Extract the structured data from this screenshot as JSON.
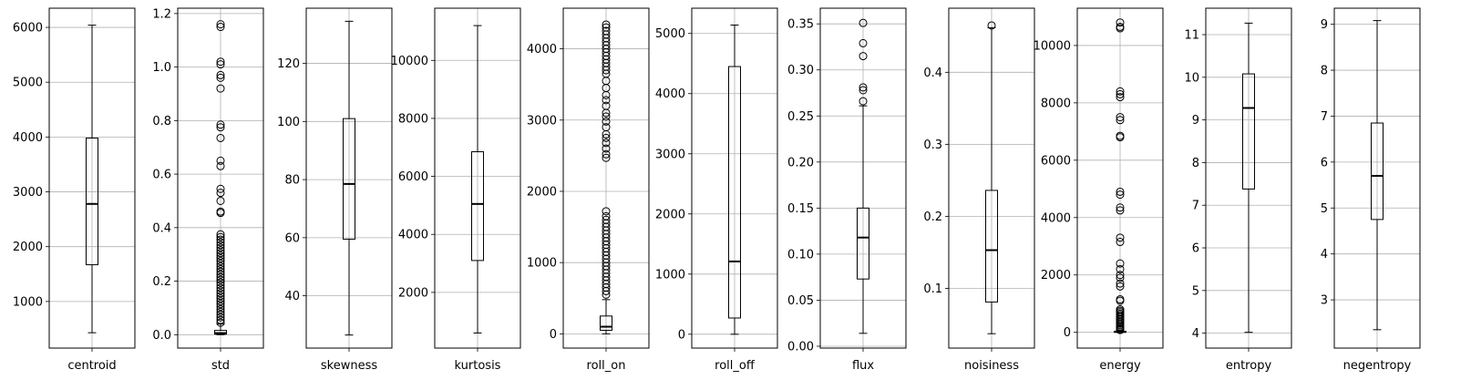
{
  "chart_data": [
    {
      "type": "box",
      "category": "centroid",
      "ylim": [
        150,
        6350
      ],
      "yticks": [
        1000,
        2000,
        3000,
        4000,
        5000,
        6000
      ],
      "ytick_labels": [
        "1000",
        "2000",
        "3000",
        "4000",
        "5000",
        "6000"
      ],
      "grid": true,
      "box": {
        "whislo": 430,
        "q1": 1670,
        "median": 2780,
        "q3": 3980,
        "whishi": 6040
      },
      "fliers": []
    },
    {
      "type": "box",
      "category": "std",
      "ylim": [
        -0.05,
        1.22
      ],
      "yticks": [
        0.0,
        0.2,
        0.4,
        0.6,
        0.8,
        1.0,
        1.2
      ],
      "ytick_labels": [
        "0.0",
        "0.2",
        "0.4",
        "0.6",
        "0.8",
        "1.0",
        "1.2"
      ],
      "grid": true,
      "box": {
        "whislo": 0.0,
        "q1": 0.002,
        "median": 0.006,
        "q3": 0.016,
        "whishi": 0.04
      },
      "fliers": [
        0.045,
        0.055,
        0.065,
        0.075,
        0.085,
        0.095,
        0.105,
        0.115,
        0.125,
        0.135,
        0.145,
        0.155,
        0.165,
        0.175,
        0.185,
        0.195,
        0.205,
        0.215,
        0.225,
        0.235,
        0.245,
        0.255,
        0.265,
        0.275,
        0.285,
        0.295,
        0.305,
        0.315,
        0.325,
        0.335,
        0.345,
        0.355,
        0.365,
        0.375,
        0.455,
        0.46,
        0.5,
        0.53,
        0.545,
        0.63,
        0.65,
        0.735,
        0.775,
        0.785,
        0.92,
        0.96,
        0.97,
        1.01,
        1.02,
        1.15,
        1.16
      ]
    },
    {
      "type": "box",
      "category": "skewness",
      "ylim": [
        22,
        139
      ],
      "yticks": [
        40,
        60,
        80,
        100,
        120
      ],
      "ytick_labels": [
        "40",
        "60",
        "80",
        "100",
        "120"
      ],
      "grid": true,
      "box": {
        "whislo": 26.5,
        "q1": 59.5,
        "median": 78.5,
        "q3": 101,
        "whishi": 134.5
      },
      "fliers": []
    },
    {
      "type": "box",
      "category": "kurtosis",
      "ylim": [
        80,
        11800
      ],
      "yticks": [
        2000,
        4000,
        6000,
        8000,
        10000
      ],
      "ytick_labels": [
        "2000",
        "4000",
        "6000",
        "8000",
        "10000"
      ],
      "grid": true,
      "box": {
        "whislo": 600,
        "q1": 3100,
        "median": 5050,
        "q3": 6850,
        "whishi": 11200
      },
      "fliers": []
    },
    {
      "type": "box",
      "category": "roll_on",
      "ylim": [
        -200,
        4570
      ],
      "yticks": [
        0,
        1000,
        2000,
        3000,
        4000
      ],
      "ytick_labels": [
        "0",
        "1000",
        "2000",
        "3000",
        "4000"
      ],
      "grid": true,
      "box": {
        "whislo": 0,
        "q1": 50,
        "median": 100,
        "q3": 250,
        "whishi": 480
      },
      "fliers": [
        550,
        600,
        650,
        700,
        750,
        800,
        850,
        900,
        950,
        1000,
        1050,
        1100,
        1150,
        1200,
        1250,
        1300,
        1350,
        1400,
        1450,
        1500,
        1550,
        1600,
        1650,
        1720,
        2470,
        2520,
        2600,
        2680,
        2750,
        2800,
        2900,
        2980,
        3050,
        3100,
        3200,
        3280,
        3350,
        3450,
        3550,
        3650,
        3700,
        3750,
        3800,
        3850,
        3900,
        3950,
        4000,
        4050,
        4100,
        4150,
        4200,
        4250,
        4300,
        4340
      ]
    },
    {
      "type": "box",
      "category": "roll_off",
      "ylim": [
        -230,
        5420
      ],
      "yticks": [
        0,
        1000,
        2000,
        3000,
        4000,
        5000
      ],
      "ytick_labels": [
        "0",
        "1000",
        "2000",
        "3000",
        "4000",
        "5000"
      ],
      "grid": true,
      "box": {
        "whislo": 0,
        "q1": 270,
        "median": 1210,
        "q3": 4450,
        "whishi": 5140
      },
      "fliers": []
    },
    {
      "type": "box",
      "category": "flux",
      "ylim": [
        -0.002,
        0.367
      ],
      "yticks": [
        0.0,
        0.05,
        0.1,
        0.15,
        0.2,
        0.25,
        0.3,
        0.35
      ],
      "ytick_labels": [
        "0.00",
        "0.05",
        "0.10",
        "0.15",
        "0.20",
        "0.25",
        "0.30",
        "0.35"
      ],
      "grid": true,
      "box": {
        "whislo": 0.014,
        "q1": 0.073,
        "median": 0.118,
        "q3": 0.15,
        "whishi": 0.261
      },
      "fliers": [
        0.266,
        0.278,
        0.281,
        0.315,
        0.329,
        0.351
      ]
    },
    {
      "type": "box",
      "category": "noisiness",
      "ylim": [
        0.017,
        0.489
      ],
      "yticks": [
        0.1,
        0.2,
        0.3,
        0.4
      ],
      "ytick_labels": [
        "0.1",
        "0.2",
        "0.3",
        "0.4"
      ],
      "grid": true,
      "box": {
        "whislo": 0.037,
        "q1": 0.081,
        "median": 0.153,
        "q3": 0.236,
        "whishi": 0.462
      },
      "fliers": [
        0.465
      ]
    },
    {
      "type": "box",
      "category": "energy",
      "ylim": [
        -550,
        11300
      ],
      "yticks": [
        0,
        2000,
        4000,
        6000,
        8000,
        10000
      ],
      "ytick_labels": [
        "0",
        "2000",
        "4000",
        "6000",
        "8000",
        "10000"
      ],
      "grid": true,
      "box": {
        "whislo": 0,
        "q1": 5,
        "median": 15,
        "q3": 30,
        "whishi": 60
      },
      "fliers": [
        80,
        120,
        160,
        200,
        250,
        300,
        350,
        400,
        450,
        500,
        550,
        600,
        650,
        700,
        750,
        800,
        1100,
        1150,
        1600,
        1700,
        1900,
        2000,
        2200,
        2400,
        3150,
        3300,
        4250,
        4350,
        4800,
        4900,
        6800,
        6850,
        7400,
        7500,
        8200,
        8300,
        8400,
        10600,
        10650,
        10800
      ]
    },
    {
      "type": "box",
      "category": "entropy",
      "ylim": [
        3.65,
        11.62
      ],
      "yticks": [
        4,
        5,
        6,
        7,
        8,
        9,
        10,
        11
      ],
      "ytick_labels": [
        "4",
        "5",
        "6",
        "7",
        "8",
        "9",
        "10",
        "11"
      ],
      "grid": true,
      "box": {
        "whislo": 4.02,
        "q1": 7.38,
        "median": 9.28,
        "q3": 10.08,
        "whishi": 11.27
      },
      "fliers": []
    },
    {
      "type": "box",
      "category": "negentropy",
      "ylim": [
        1.95,
        9.35
      ],
      "yticks": [
        3,
        4,
        5,
        6,
        7,
        8,
        9
      ],
      "ytick_labels": [
        "3",
        "4",
        "5",
        "6",
        "7",
        "8",
        "9"
      ],
      "grid": true,
      "box": {
        "whislo": 2.35,
        "q1": 4.75,
        "median": 5.7,
        "q3": 6.85,
        "whishi": 9.08
      },
      "fliers": []
    }
  ]
}
